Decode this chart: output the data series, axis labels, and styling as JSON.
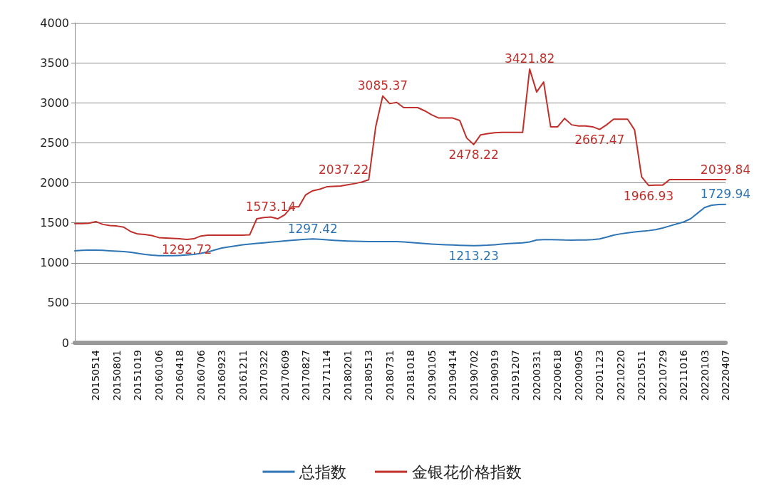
{
  "chart_data": {
    "type": "line",
    "categories": [
      null,
      null,
      null,
      "20150514",
      null,
      null,
      "20150801",
      null,
      null,
      "20151019",
      null,
      null,
      "20160106",
      null,
      null,
      "20160418",
      null,
      null,
      "20160706",
      null,
      null,
      "20160923",
      null,
      null,
      "20161211",
      null,
      null,
      "20170322",
      null,
      null,
      "20170609",
      null,
      null,
      "20170827",
      null,
      null,
      "20171114",
      null,
      null,
      "20180201",
      null,
      null,
      "20180513",
      null,
      null,
      "20180731",
      null,
      null,
      "20181018",
      null,
      null,
      "20190105",
      null,
      null,
      "20190414",
      null,
      null,
      "20190702",
      null,
      null,
      "20190919",
      null,
      null,
      "20191207",
      null,
      null,
      "20200331",
      null,
      null,
      "20200618",
      null,
      null,
      "20200905",
      null,
      null,
      "20201123",
      null,
      null,
      "20210220",
      null,
      null,
      "20210511",
      null,
      null,
      "20210729",
      null,
      null,
      "20211016",
      null,
      null,
      "20220103",
      null,
      null,
      "20220407"
    ],
    "series": [
      {
        "name": "总指数",
        "color": "#2e75b6",
        "values": [
          1150,
          1155,
          1158,
          1158,
          1155,
          1150,
          1145,
          1140,
          1132,
          1118,
          1105,
          1095,
          1090,
          1088,
          1088,
          1092,
          1097,
          1105,
          1118,
          1135,
          1160,
          1185,
          1198,
          1212,
          1224,
          1233,
          1242,
          1250,
          1258,
          1266,
          1273,
          1280,
          1288,
          1294,
          1297.42,
          1294,
          1287,
          1281,
          1276,
          1272,
          1269,
          1267,
          1266,
          1265,
          1265,
          1265,
          1264,
          1260,
          1254,
          1247,
          1240,
          1234,
          1229,
          1225,
          1222,
          1219,
          1216,
          1213.23,
          1216,
          1220,
          1226,
          1233,
          1240,
          1246,
          1250,
          1260,
          1285,
          1290,
          1290,
          1287,
          1284,
          1283,
          1284,
          1286,
          1289,
          1298,
          1320,
          1345,
          1362,
          1375,
          1385,
          1395,
          1402,
          1415,
          1435,
          1460,
          1485,
          1510,
          1550,
          1620,
          1690,
          1720,
          1728,
          1729.94
        ],
        "value_labels": [
          null,
          null,
          null,
          null,
          null,
          null,
          null,
          null,
          null,
          null,
          null,
          null,
          null,
          null,
          null,
          null,
          null,
          null,
          null,
          null,
          null,
          null,
          null,
          null,
          null,
          null,
          null,
          null,
          null,
          null,
          null,
          null,
          null,
          null,
          "1297.42",
          null,
          null,
          null,
          null,
          null,
          null,
          null,
          null,
          null,
          null,
          null,
          null,
          null,
          null,
          null,
          null,
          null,
          null,
          null,
          null,
          null,
          null,
          "1213.23",
          null,
          null,
          null,
          null,
          null,
          null,
          null,
          null,
          null,
          null,
          null,
          null,
          null,
          null,
          null,
          null,
          null,
          null,
          null,
          null,
          null,
          null,
          null,
          null,
          null,
          null,
          null,
          null,
          null,
          null,
          null,
          null,
          null,
          null,
          null,
          "1729.94"
        ]
      },
      {
        "name": "金银花价格指数",
        "color": "#c0302b",
        "values": [
          1490,
          1490,
          1495,
          1515,
          1480,
          1465,
          1460,
          1445,
          1390,
          1360,
          1355,
          1340,
          1315,
          1310,
          1305,
          1300,
          1292.72,
          1300,
          1335,
          1345,
          1345,
          1345,
          1345,
          1345,
          1345,
          1350,
          1550,
          1565,
          1573.14,
          1550,
          1600,
          1700,
          1700,
          1850,
          1900,
          1920,
          1950,
          1955,
          1960,
          1975,
          1990,
          2010,
          2037.22,
          2700,
          3085.37,
          2990,
          3005,
          2940,
          2940,
          2940,
          2900,
          2850,
          2810,
          2810,
          2810,
          2780,
          2560,
          2478.22,
          2600,
          2615,
          2625,
          2630,
          2630,
          2630,
          2630,
          3421.82,
          3135,
          3260,
          2700,
          2700,
          2805,
          2725,
          2710,
          2710,
          2700,
          2667.47,
          2725,
          2795,
          2795,
          2795,
          2660,
          2075,
          1966.93,
          1970,
          1970,
          2040,
          2040,
          2040,
          2040,
          2040,
          2040,
          2040,
          2040,
          2039.84
        ],
        "value_labels": [
          null,
          null,
          null,
          null,
          null,
          null,
          null,
          null,
          null,
          null,
          null,
          null,
          null,
          null,
          null,
          null,
          "1292.72",
          null,
          null,
          null,
          null,
          null,
          null,
          null,
          null,
          null,
          null,
          null,
          "1573.14",
          null,
          null,
          null,
          null,
          null,
          null,
          null,
          null,
          null,
          null,
          null,
          null,
          null,
          "2037.22",
          null,
          "3085.37",
          null,
          null,
          null,
          null,
          null,
          null,
          null,
          null,
          null,
          null,
          null,
          null,
          "2478.22",
          null,
          null,
          null,
          null,
          null,
          null,
          null,
          "3421.82",
          null,
          null,
          null,
          null,
          null,
          null,
          null,
          null,
          null,
          "2667.47",
          null,
          null,
          null,
          null,
          null,
          null,
          "1966.93",
          null,
          null,
          null,
          null,
          null,
          null,
          null,
          null,
          null,
          null,
          "2039.84"
        ]
      }
    ],
    "ylim": [
      0,
      4000
    ],
    "yticks": [
      0,
      500,
      1000,
      1500,
      2000,
      2500,
      3000,
      3500,
      4000
    ],
    "grid": "y",
    "legend": "bottom",
    "marker": "none",
    "line_style": "solid"
  }
}
